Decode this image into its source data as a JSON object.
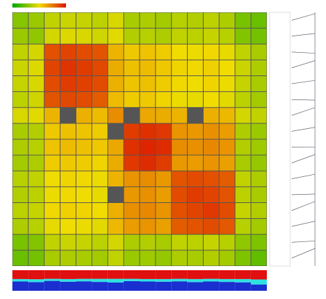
{
  "chart_data": [
    {
      "type": "heatmap",
      "zlim": [
        0,
        100
      ],
      "colors": [
        "#00a800",
        "#f0dc00",
        "#dc1400"
      ],
      "missing_color": "#555555",
      "matrix": [
        [
          28,
          32,
          40,
          42,
          41,
          39,
          45,
          35,
          36,
          34,
          38,
          37,
          39,
          36,
          25,
          22
        ],
        [
          32,
          30,
          44,
          46,
          45,
          43,
          47,
          37,
          38,
          36,
          40,
          39,
          41,
          38,
          27,
          24
        ],
        [
          40,
          44,
          85,
          88,
          86,
          84,
          60,
          55,
          56,
          54,
          50,
          49,
          51,
          48,
          40,
          35
        ],
        [
          42,
          46,
          88,
          92,
          90,
          87,
          62,
          57,
          58,
          55,
          52,
          51,
          53,
          50,
          42,
          36
        ],
        [
          41,
          45,
          86,
          90,
          89,
          86,
          61,
          56,
          57,
          54,
          51,
          50,
          52,
          49,
          41,
          35
        ],
        [
          39,
          43,
          84,
          87,
          86,
          82,
          58,
          54,
          55,
          52,
          49,
          48,
          50,
          47,
          39,
          34
        ],
        [
          45,
          47,
          60,
          null,
          61,
          58,
          70,
          null,
          63,
          62,
          60,
          null,
          61,
          59,
          44,
          40
        ],
        [
          35,
          37,
          55,
          57,
          56,
          54,
          null,
          90,
          93,
          91,
          68,
          67,
          69,
          66,
          36,
          32
        ],
        [
          36,
          38,
          56,
          58,
          57,
          55,
          63,
          93,
          96,
          94,
          70,
          69,
          71,
          68,
          37,
          33
        ],
        [
          34,
          36,
          54,
          55,
          54,
          52,
          62,
          91,
          94,
          90,
          67,
          66,
          68,
          65,
          35,
          31
        ],
        [
          38,
          40,
          50,
          52,
          51,
          49,
          60,
          68,
          70,
          67,
          84,
          86,
          85,
          82,
          40,
          36
        ],
        [
          37,
          39,
          49,
          51,
          50,
          48,
          null,
          67,
          69,
          66,
          86,
          90,
          88,
          84,
          39,
          35
        ],
        [
          39,
          41,
          51,
          53,
          52,
          50,
          61,
          69,
          71,
          68,
          85,
          88,
          91,
          86,
          41,
          37
        ],
        [
          36,
          38,
          48,
          50,
          49,
          47,
          59,
          66,
          68,
          65,
          82,
          84,
          86,
          83,
          38,
          34
        ],
        [
          25,
          27,
          40,
          42,
          41,
          39,
          44,
          36,
          37,
          35,
          40,
          39,
          41,
          38,
          30,
          26
        ],
        [
          22,
          24,
          35,
          36,
          35,
          34,
          40,
          32,
          33,
          31,
          36,
          35,
          37,
          34,
          26,
          20
        ]
      ]
    },
    {
      "type": "stacked-bar",
      "ylim": [
        0,
        100
      ],
      "series": [
        {
          "color": "#1a2fd0",
          "values": [
            45,
            42,
            48,
            44,
            46,
            43,
            40,
            47,
            45,
            44,
            46,
            42,
            45,
            43,
            41,
            30
          ]
        },
        {
          "color": "#30e0e0",
          "values": [
            12,
            14,
            10,
            13,
            12,
            15,
            18,
            11,
            12,
            13,
            12,
            15,
            13,
            14,
            16,
            25
          ]
        },
        {
          "color": "#e01010",
          "values": [
            43,
            44,
            42,
            43,
            42,
            42,
            42,
            42,
            43,
            43,
            42,
            43,
            42,
            43,
            43,
            45
          ]
        }
      ]
    }
  ]
}
